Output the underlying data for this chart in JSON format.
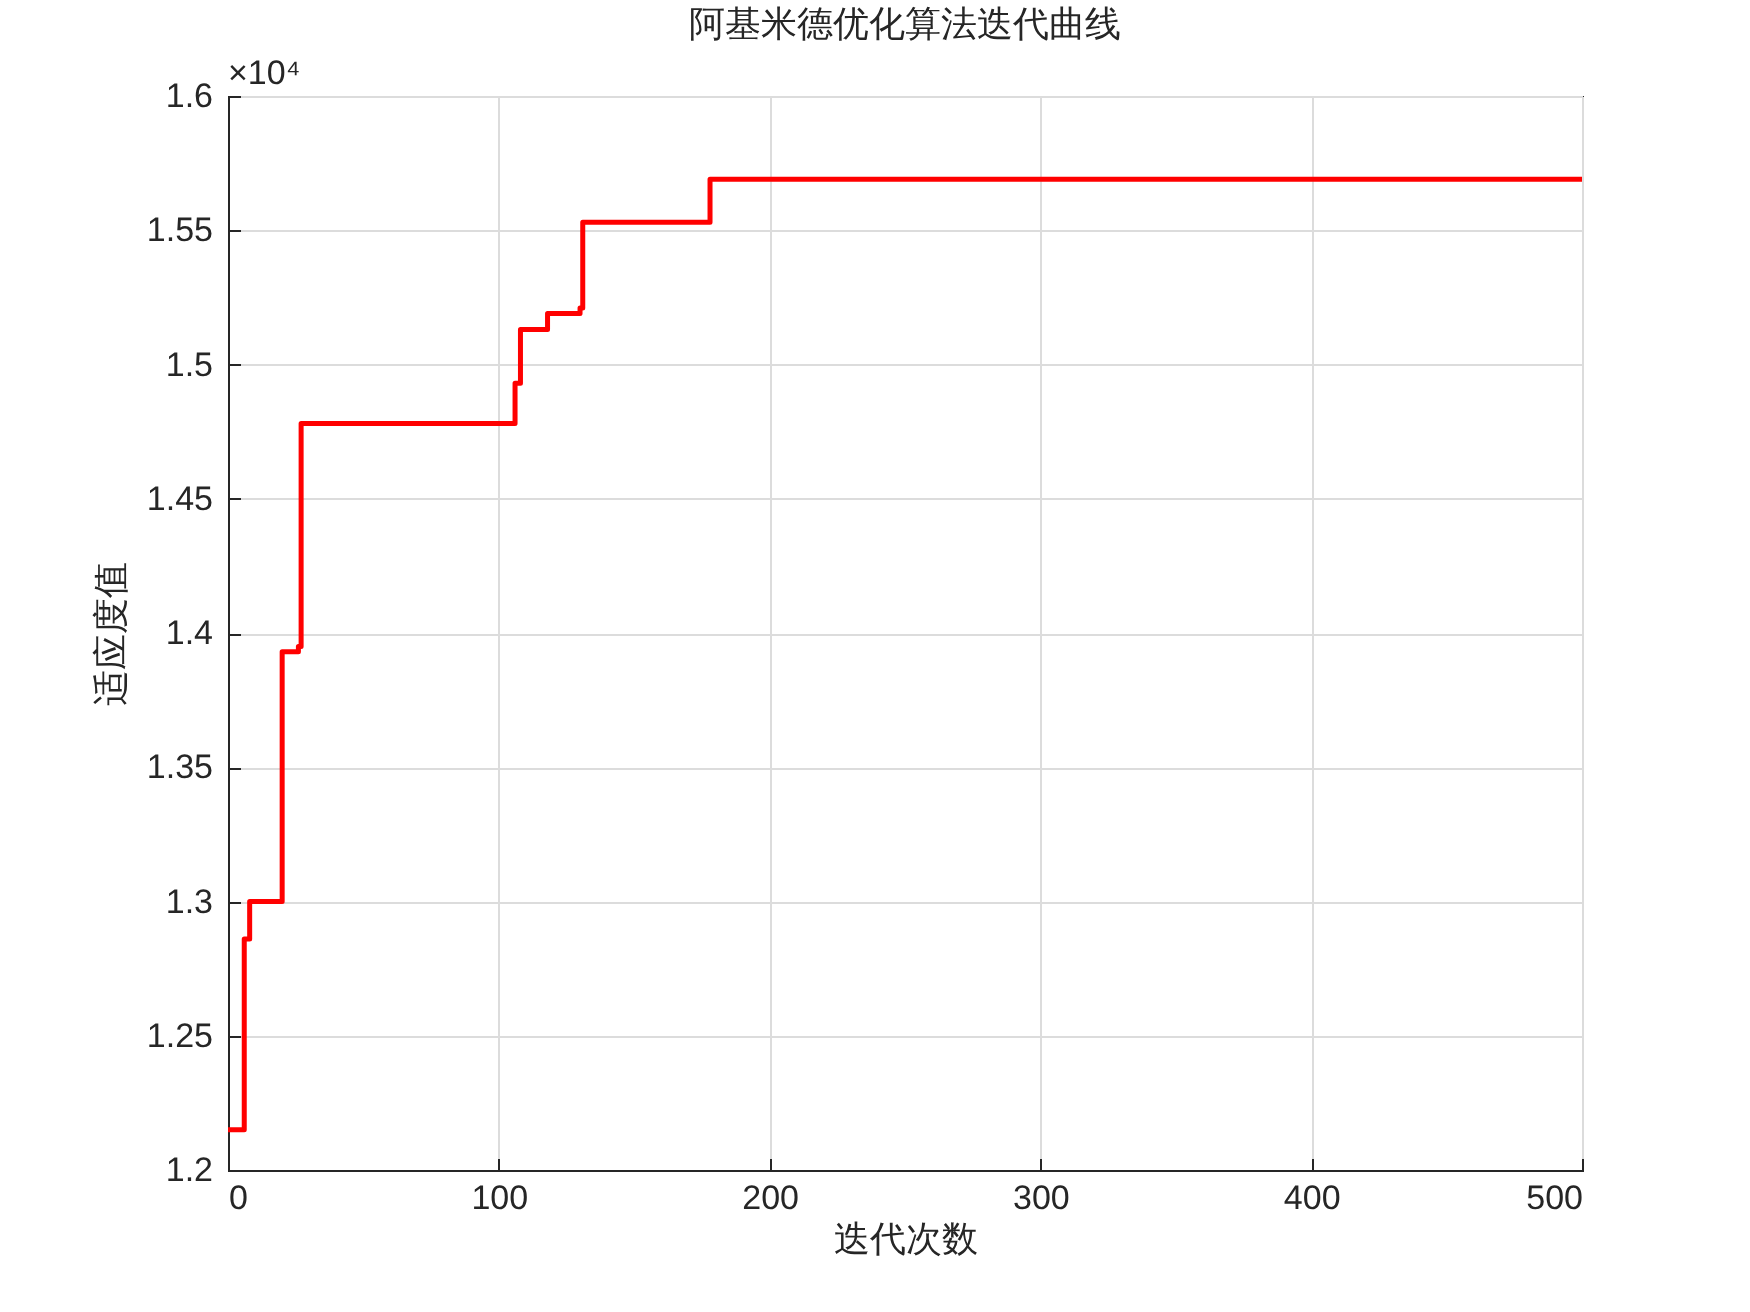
{
  "chart_data": {
    "type": "step",
    "title": "阿基米德优化算法迭代曲线",
    "xlabel": "迭代次数",
    "ylabel": "适应度值",
    "annotations": [
      "×10⁴"
    ],
    "x": [
      0,
      6,
      8,
      20,
      26,
      27,
      106,
      108,
      118,
      130,
      131,
      178,
      500
    ],
    "series": [
      {
        "color": "#ff0000",
        "values": [
          1.215,
          1.286,
          1.3,
          1.393,
          1.395,
          1.478,
          1.493,
          1.513,
          1.519,
          1.521,
          1.553,
          1.569,
          1.569
        ]
      }
    ],
    "xlim": [
      0,
      500
    ],
    "xticks": [
      0,
      100,
      200,
      300,
      400,
      500
    ],
    "ylim": [
      1.2,
      1.6
    ],
    "yticks": [
      1.2,
      1.25,
      1.3,
      1.35,
      1.4,
      1.45,
      1.5,
      1.55,
      1.6
    ],
    "grid": true,
    "line_style": "solid",
    "marker": "none"
  }
}
